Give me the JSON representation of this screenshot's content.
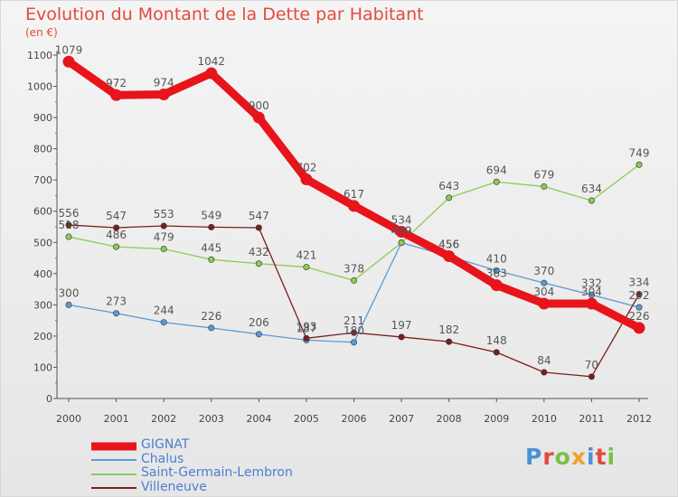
{
  "header": {
    "title": "Evolution du Montant de la Dette par Habitant",
    "unit": "(en €)"
  },
  "logo": {
    "text": "Proxiti",
    "colors": [
      "#4a90d9",
      "#e44a3c",
      "#7ac043",
      "#f0a030",
      "#4a90d9",
      "#e44a3c",
      "#7ac043"
    ]
  },
  "chart_data": {
    "type": "line",
    "title": "Evolution du Montant de la Dette par Habitant",
    "ylabel": "(en €)",
    "xlabel": "",
    "x": [
      "2000",
      "2001",
      "2002",
      "2003",
      "2004",
      "2005",
      "2006",
      "2007",
      "2008",
      "2009",
      "2010",
      "2011",
      "2012"
    ],
    "ylim": [
      0,
      1100
    ],
    "yticks": [
      0,
      100,
      200,
      300,
      400,
      500,
      600,
      700,
      800,
      900,
      1000,
      1100
    ],
    "grid": false,
    "legend_position": "bottom-left",
    "series": [
      {
        "name": "GIGNAT",
        "color": "#e8141b",
        "emphasis": true,
        "values": [
          1079,
          972,
          974,
          1042,
          900,
          702,
          617,
          534,
          456,
          363,
          304,
          304,
          226
        ]
      },
      {
        "name": "Chalus",
        "color": "#5b9bd5",
        "emphasis": false,
        "values": [
          300,
          273,
          244,
          226,
          206,
          187,
          180,
          499,
          456,
          410,
          370,
          332,
          292
        ]
      },
      {
        "name": "Saint-Germain-Lembron",
        "color": "#88cc55",
        "emphasis": false,
        "values": [
          518,
          486,
          479,
          445,
          432,
          421,
          378,
          499,
          643,
          694,
          679,
          634,
          749
        ]
      },
      {
        "name": "Villeneuve",
        "color": "#7a1e1e",
        "emphasis": false,
        "values": [
          556,
          547,
          553,
          549,
          547,
          193,
          211,
          197,
          182,
          148,
          84,
          70,
          334
        ]
      }
    ]
  }
}
